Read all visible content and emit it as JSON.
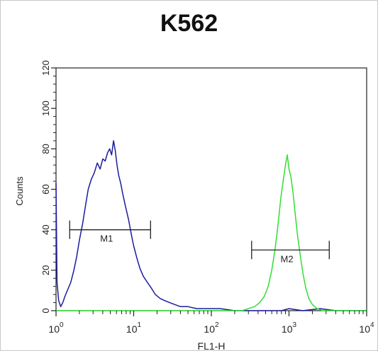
{
  "chart_data": {
    "type": "histogram",
    "title": "K562",
    "xlabel": "FL1-H",
    "ylabel": "Counts",
    "x_scale": "log",
    "xlim": [
      1,
      10000
    ],
    "ylim": [
      0,
      120
    ],
    "y_ticks": [
      0,
      20,
      40,
      60,
      80,
      100,
      120
    ],
    "x_tick_labels": [
      {
        "base": "10",
        "exp": "0",
        "value": 1
      },
      {
        "base": "10",
        "exp": "1",
        "value": 10
      },
      {
        "base": "10",
        "exp": "2",
        "value": 100
      },
      {
        "base": "10",
        "exp": "3",
        "value": 1000
      },
      {
        "base": "10",
        "exp": "4",
        "value": 10000
      }
    ],
    "series": [
      {
        "color": "#1c1c9e",
        "points": [
          [
            1.0,
            63
          ],
          [
            1.03,
            14
          ],
          [
            1.08,
            5
          ],
          [
            1.15,
            2
          ],
          [
            1.22,
            4
          ],
          [
            1.3,
            7
          ],
          [
            1.4,
            10
          ],
          [
            1.55,
            14
          ],
          [
            1.7,
            20
          ],
          [
            1.85,
            27
          ],
          [
            2.0,
            35
          ],
          [
            2.2,
            43
          ],
          [
            2.4,
            52
          ],
          [
            2.6,
            60
          ],
          [
            2.85,
            65
          ],
          [
            3.1,
            68
          ],
          [
            3.4,
            73
          ],
          [
            3.7,
            70
          ],
          [
            4.0,
            75
          ],
          [
            4.3,
            74
          ],
          [
            4.6,
            78
          ],
          [
            4.9,
            80
          ],
          [
            5.2,
            77
          ],
          [
            5.5,
            84
          ],
          [
            5.8,
            79
          ],
          [
            6.1,
            72
          ],
          [
            6.4,
            67
          ],
          [
            6.8,
            63
          ],
          [
            7.3,
            57
          ],
          [
            7.9,
            51
          ],
          [
            8.6,
            45
          ],
          [
            9.3,
            38
          ],
          [
            10.0,
            32
          ],
          [
            11.0,
            26
          ],
          [
            12.0,
            21
          ],
          [
            13.3,
            17
          ],
          [
            15.0,
            14
          ],
          [
            17.0,
            11
          ],
          [
            19.0,
            8
          ],
          [
            22.0,
            6
          ],
          [
            25.0,
            5
          ],
          [
            29.0,
            4
          ],
          [
            34.0,
            3
          ],
          [
            40.0,
            2
          ],
          [
            50.0,
            2
          ],
          [
            65.0,
            1
          ],
          [
            90.0,
            1
          ],
          [
            130.0,
            1
          ],
          [
            200.0,
            0
          ],
          [
            300.0,
            0
          ],
          [
            500.0,
            0
          ],
          [
            800.0,
            0
          ],
          [
            1000.0,
            1
          ],
          [
            1500.0,
            0
          ],
          [
            2500.0,
            1
          ],
          [
            4000.0,
            0
          ],
          [
            10000.0,
            0
          ]
        ]
      },
      {
        "color": "#33dd33",
        "points": [
          [
            1.0,
            0
          ],
          [
            50.0,
            0
          ],
          [
            250.0,
            0
          ],
          [
            300.0,
            1
          ],
          [
            360.0,
            2
          ],
          [
            420.0,
            4
          ],
          [
            480.0,
            7
          ],
          [
            540.0,
            12
          ],
          [
            600.0,
            20
          ],
          [
            660.0,
            30
          ],
          [
            720.0,
            42
          ],
          [
            780.0,
            55
          ],
          [
            840.0,
            64
          ],
          [
            900.0,
            72
          ],
          [
            950.0,
            77
          ],
          [
            1000.0,
            70
          ],
          [
            1060.0,
            66
          ],
          [
            1130.0,
            58
          ],
          [
            1200.0,
            48
          ],
          [
            1290.0,
            37
          ],
          [
            1400.0,
            27
          ],
          [
            1520.0,
            18
          ],
          [
            1650.0,
            11
          ],
          [
            1800.0,
            6
          ],
          [
            2000.0,
            3
          ],
          [
            2300.0,
            1
          ],
          [
            2700.0,
            0
          ],
          [
            4000.0,
            0
          ],
          [
            10000.0,
            0
          ]
        ]
      }
    ],
    "markers": [
      {
        "label": "M1",
        "x1": 1.5,
        "x2": 16.5,
        "y": 40
      },
      {
        "label": "M2",
        "x1": 330,
        "x2": 3300,
        "y": 30
      }
    ]
  }
}
